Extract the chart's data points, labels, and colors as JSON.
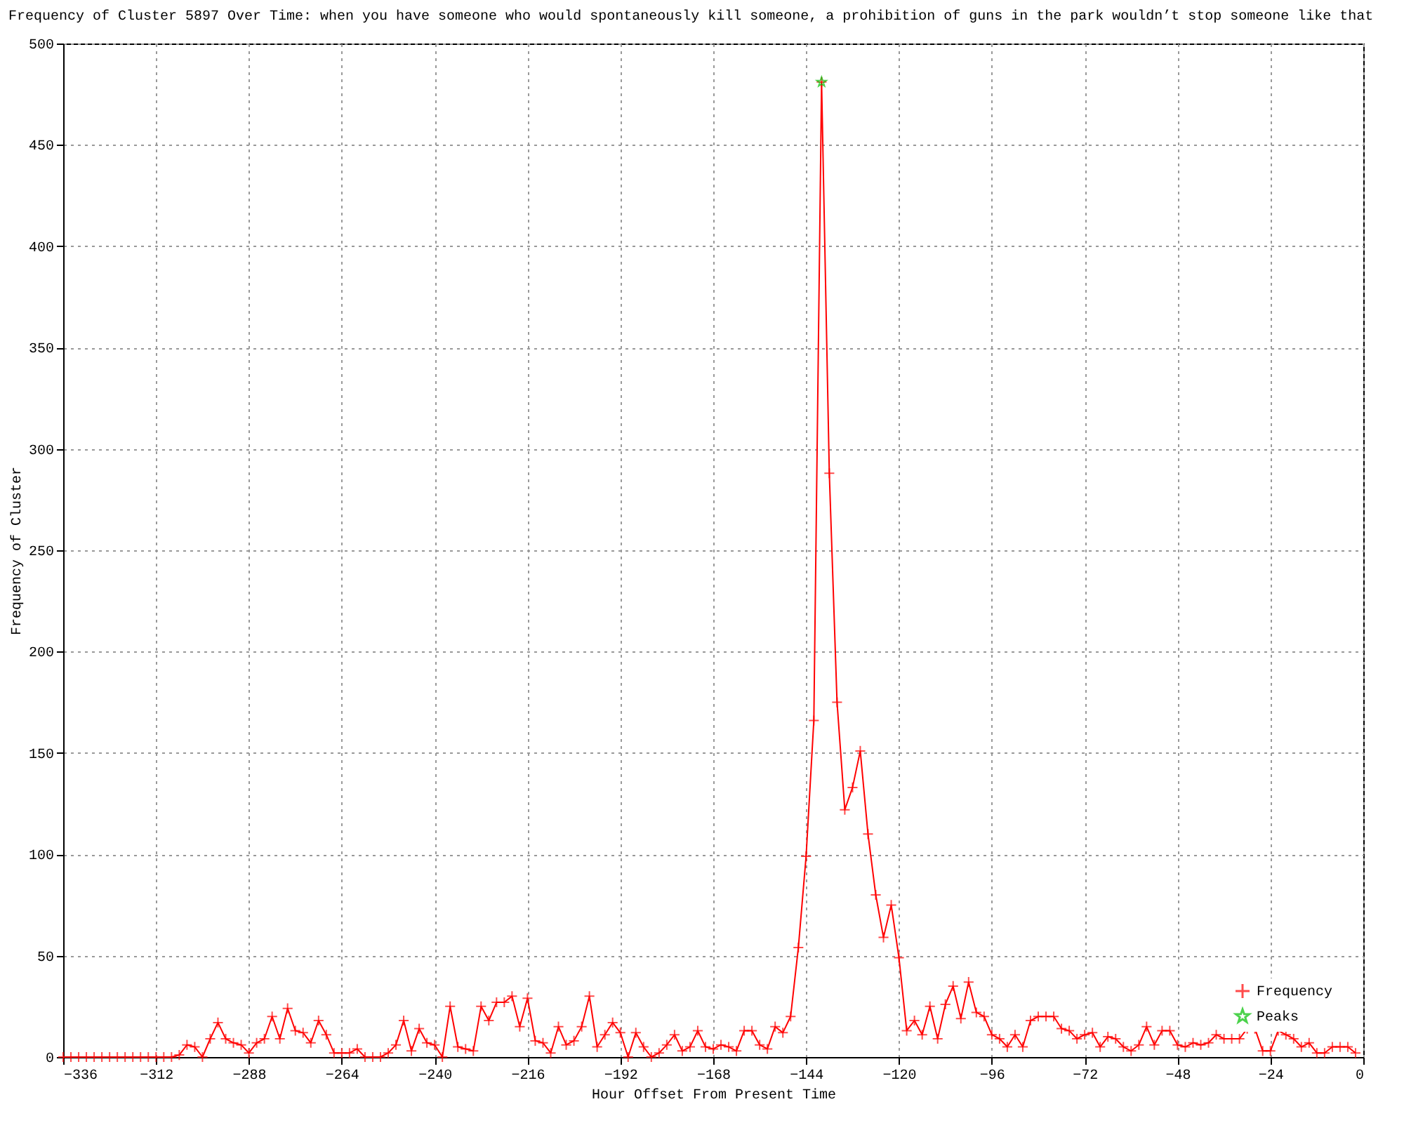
{
  "chart_data": {
    "type": "line",
    "title": "Frequency of Cluster 5897 Over Time: when you have someone who would spontaneously kill someone, a prohibition of guns in the park wouldn’t stop someone like that",
    "xlabel": "Hour Offset From Present Time",
    "ylabel": "Frequency of Cluster",
    "xlim": [
      -336,
      0
    ],
    "xticks": [
      -336,
      -312,
      -288,
      -264,
      -240,
      -216,
      -192,
      -168,
      -144,
      -120,
      -96,
      -72,
      -48,
      -24,
      0
    ],
    "ylim": [
      0,
      500
    ],
    "yticks": [
      0,
      50,
      100,
      150,
      200,
      250,
      300,
      350,
      400,
      450,
      500
    ],
    "grid": true,
    "legend": "bottom right",
    "line_style": "solid",
    "series": [
      {
        "name": "Frequency",
        "marker": "cross",
        "color": "#ff0000",
        "x": [
          -336,
          -334,
          -332,
          -330,
          -328,
          -326,
          -324,
          -322,
          -320,
          -318,
          -316,
          -314,
          -312,
          -310,
          -308,
          -306,
          -304,
          -302,
          -300,
          -298,
          -296,
          -294,
          -292,
          -290,
          -288,
          -286,
          -284,
          -282,
          -280,
          -278,
          -276,
          -274,
          -272,
          -270,
          -268,
          -266,
          -264,
          -262,
          -260,
          -258,
          -256,
          -254,
          -252,
          -250,
          -248,
          -246,
          -244,
          -242,
          -240,
          -238,
          -236,
          -234,
          -232,
          -230,
          -228,
          -226,
          -224,
          -222,
          -220,
          -218,
          -216,
          -214,
          -212,
          -210,
          -208,
          -206,
          -204,
          -202,
          -200,
          -198,
          -196,
          -194,
          -192,
          -190,
          -188,
          -186,
          -184,
          -182,
          -180,
          -178,
          -176,
          -174,
          -172,
          -170,
          -168,
          -166,
          -164,
          -162,
          -160,
          -158,
          -156,
          -154,
          -152,
          -150,
          -148,
          -146,
          -144,
          -142,
          -140,
          -138,
          -136,
          -134,
          -132,
          -130,
          -128,
          -126,
          -124,
          -122,
          -120,
          -118,
          -116,
          -114,
          -112,
          -110,
          -108,
          -106,
          -104,
          -102,
          -100,
          -98,
          -96,
          -94,
          -92,
          -90,
          -88,
          -86,
          -84,
          -82,
          -80,
          -78,
          -76,
          -74,
          -72,
          -70,
          -68,
          -66,
          -64,
          -62,
          -60,
          -58,
          -56,
          -54,
          -52,
          -50,
          -48,
          -46,
          -44,
          -42,
          -40,
          -38,
          -36,
          -34,
          -32,
          -30,
          -28,
          -26,
          -24,
          -22,
          -20,
          -18,
          -16,
          -14,
          -12,
          -10,
          -8,
          -6,
          -4,
          -2
        ],
        "values": [
          0,
          0,
          0,
          0,
          0,
          0,
          0,
          0,
          0,
          0,
          0,
          0,
          0,
          0,
          0,
          1,
          6,
          5,
          0,
          9,
          17,
          9,
          7,
          6,
          2,
          7,
          9,
          20,
          9,
          24,
          13,
          12,
          7,
          18,
          11,
          2,
          2,
          2,
          4,
          0,
          0,
          0,
          2,
          6,
          18,
          3,
          14,
          7,
          6,
          0,
          25,
          5,
          4,
          3,
          25,
          18,
          27,
          27,
          30,
          15,
          29,
          8,
          7,
          2,
          15,
          6,
          8,
          15,
          30,
          5,
          11,
          17,
          12,
          0,
          12,
          5,
          0,
          2,
          6,
          11,
          3,
          5,
          13,
          5,
          4,
          6,
          5,
          3,
          13,
          13,
          6,
          4,
          15,
          12,
          20,
          54,
          99,
          166,
          481,
          288,
          175,
          122,
          133,
          151,
          110,
          80,
          59,
          75,
          49,
          13,
          18,
          11,
          25,
          9,
          26,
          35,
          19,
          37,
          22,
          20,
          11,
          9,
          5,
          11,
          5,
          18,
          20,
          20,
          20,
          14,
          13,
          9,
          11,
          12,
          5,
          10,
          9,
          5,
          3,
          6,
          15,
          6,
          13,
          13,
          6,
          5,
          7,
          6,
          7,
          11,
          9,
          9,
          9,
          14,
          14,
          3,
          3,
          13,
          11,
          9,
          5,
          7,
          2,
          2,
          5,
          5,
          5,
          2
        ]
      },
      {
        "name": "Peaks",
        "type": "scatter",
        "marker": "star",
        "color": "#00c000",
        "x": [
          -140
        ],
        "values": [
          481
        ]
      }
    ]
  }
}
